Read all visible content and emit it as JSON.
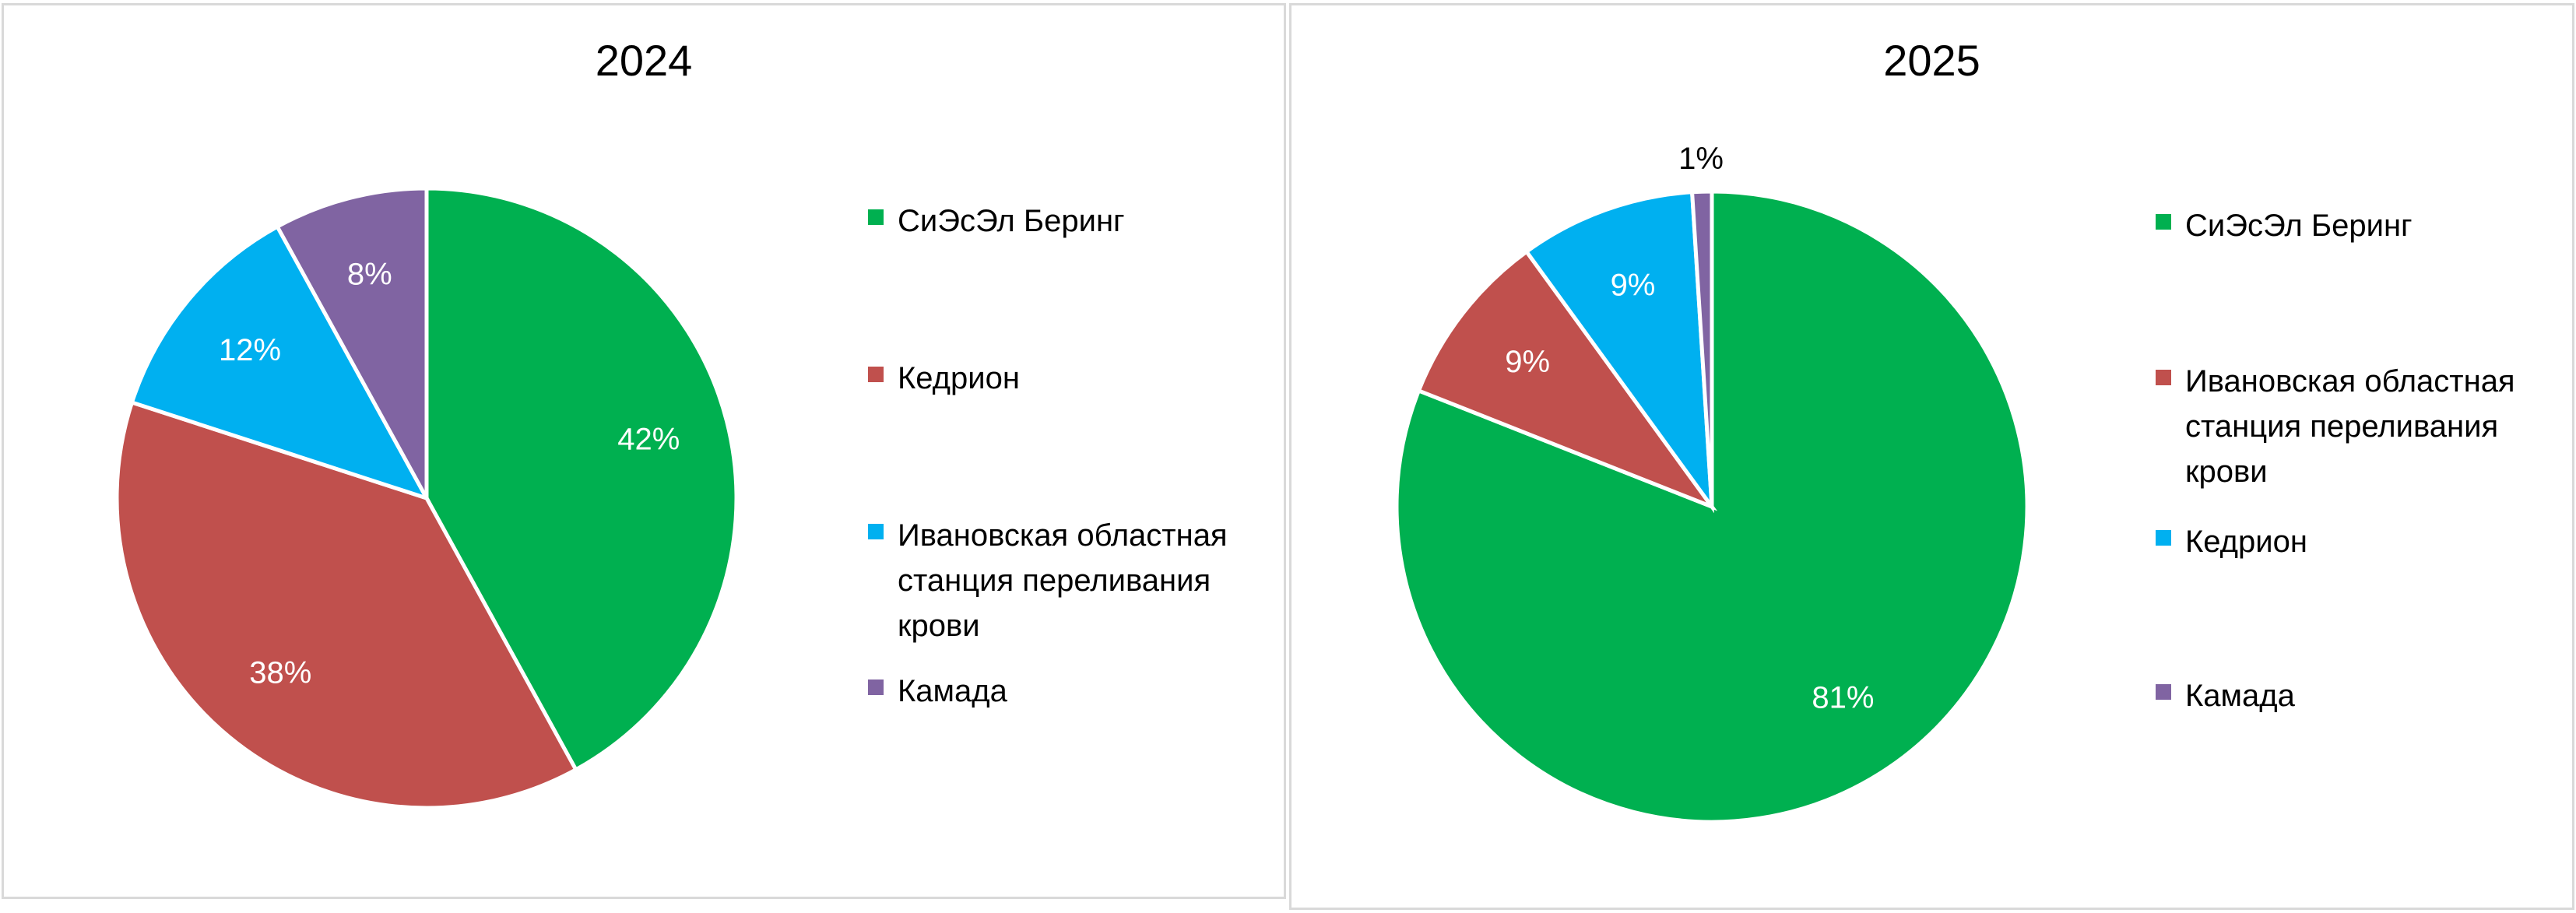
{
  "chart_data": [
    {
      "type": "pie",
      "title": "2024",
      "series": [
        {
          "name": "СиЭсЭл Беринг",
          "value": 42,
          "label": "42%",
          "color": "#00b050"
        },
        {
          "name": "Кедрион",
          "value": 38,
          "label": "38%",
          "color": "#c0504d"
        },
        {
          "name": "Ивановская областная станция переливания крови",
          "value": 12,
          "label": "12%",
          "color": "#00b0f0"
        },
        {
          "name": "Камада",
          "value": 8,
          "label": "8%",
          "color": "#8064a2"
        }
      ],
      "legend_position": "right"
    },
    {
      "type": "pie",
      "title": "2025",
      "series": [
        {
          "name": "СиЭсЭл Беринг",
          "value": 81,
          "label": "81%",
          "color": "#00b050"
        },
        {
          "name": "Ивановская областная станция переливания крови",
          "value": 9,
          "label": "9%",
          "color": "#c0504d"
        },
        {
          "name": "Кедрион",
          "value": 9,
          "label": "9%",
          "color": "#00b0f0"
        },
        {
          "name": "Камада",
          "value": 1,
          "label": "1%",
          "color": "#8064a2"
        }
      ],
      "legend_position": "right"
    }
  ]
}
